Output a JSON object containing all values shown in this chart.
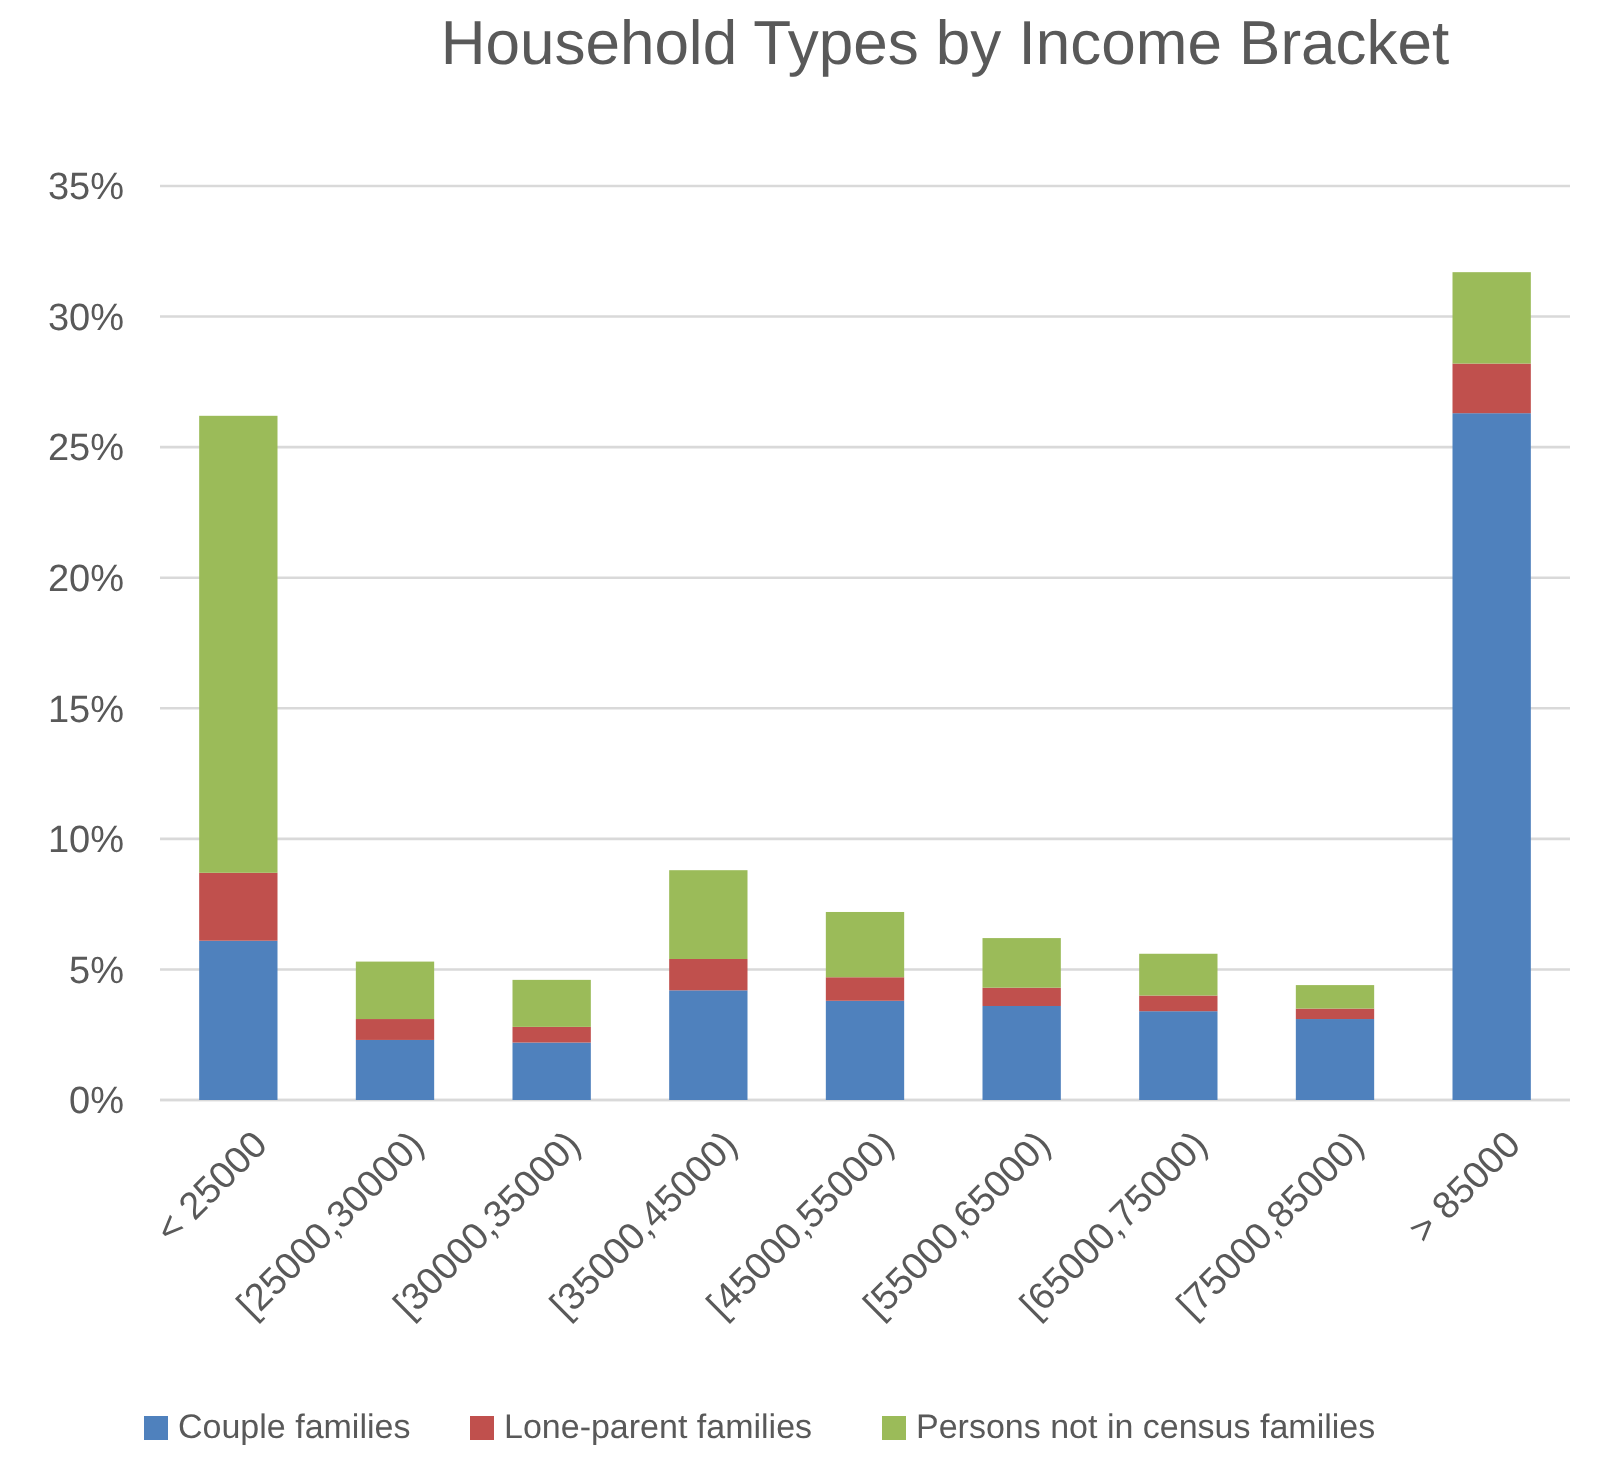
{
  "chart_data": {
    "type": "bar",
    "title": "Household Types by Income Bracket",
    "categories": [
      "< 25000",
      "[25000,30000)",
      "[30000,35000)",
      "[35000,45000)",
      "[45000,55000)",
      "[55000,65000)",
      "[65000,75000)",
      "[75000,85000)",
      "> 85000"
    ],
    "series": [
      {
        "name": "Couple families",
        "color": "#4f81bd",
        "values": [
          6.1,
          2.3,
          2.2,
          4.2,
          3.8,
          3.6,
          3.4,
          3.1,
          26.3
        ]
      },
      {
        "name": "Lone-parent families",
        "color": "#c0504d",
        "values": [
          2.6,
          0.8,
          0.6,
          1.2,
          0.9,
          0.7,
          0.6,
          0.4,
          1.9
        ]
      },
      {
        "name": "Persons not in census families",
        "color": "#9bbb59",
        "values": [
          17.5,
          2.2,
          1.8,
          3.4,
          2.5,
          1.9,
          1.6,
          0.9,
          3.5
        ]
      }
    ],
    "stacked": true,
    "ylim": [
      0,
      35
    ],
    "yticks": [
      {
        "value": 0,
        "label": "0%"
      },
      {
        "value": 5,
        "label": "5%"
      },
      {
        "value": 10,
        "label": "10%"
      },
      {
        "value": 15,
        "label": "15%"
      },
      {
        "value": 20,
        "label": "20%"
      },
      {
        "value": 25,
        "label": "25%"
      },
      {
        "value": 30,
        "label": "30%"
      },
      {
        "value": 35,
        "label": "35%"
      }
    ],
    "grid": "y",
    "legend": "bottom"
  }
}
